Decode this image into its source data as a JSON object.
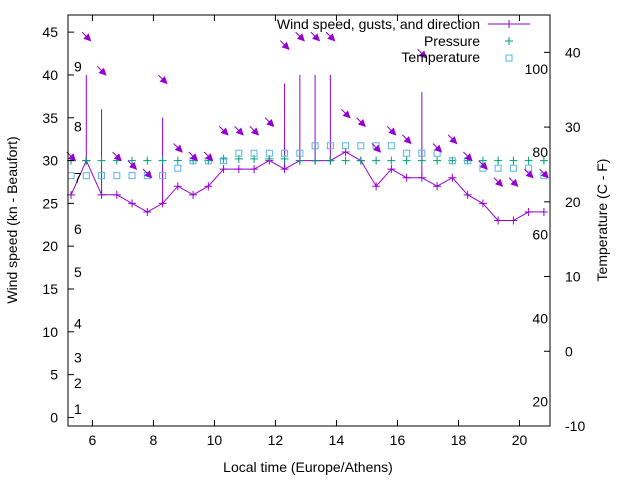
{
  "colors": {
    "wind": "#9400d3",
    "pressure": "#009e73",
    "temperature": "#56b4e9",
    "axis": "#000000"
  },
  "chart_data": {
    "type": "line",
    "title": "",
    "xlabel": "Local time (Europe/Athens)",
    "ylabel": "Wind speed (kn - Beaufort)",
    "y2label": "Temperature (C - F)",
    "xlim": [
      5.2,
      21.0
    ],
    "ylim": [
      -1,
      47
    ],
    "y2lim": [
      -10,
      45
    ],
    "x_ticks": [
      6,
      8,
      10,
      12,
      14,
      16,
      18,
      20
    ],
    "y_ticks": [
      0,
      5,
      10,
      15,
      20,
      25,
      30,
      35,
      40,
      45
    ],
    "y2_ticks": [
      -10,
      0,
      10,
      20,
      30,
      40
    ],
    "beaufort_labels": [
      {
        "label": "1",
        "wind": 1
      },
      {
        "label": "2",
        "wind": 4
      },
      {
        "label": "3",
        "wind": 7
      },
      {
        "label": "4",
        "wind": 11
      },
      {
        "label": "5",
        "wind": 17
      },
      {
        "label": "6",
        "wind": 22
      },
      {
        "label": "7",
        "wind": 28
      },
      {
        "label": "8",
        "wind": 34
      },
      {
        "label": "9",
        "wind": 41
      }
    ],
    "fahrenheit_labels": [
      {
        "label": "20",
        "temp": -6.7
      },
      {
        "label": "40",
        "temp": 4.4
      },
      {
        "label": "60",
        "temp": 15.6
      },
      {
        "label": "80",
        "temp": 26.7
      },
      {
        "label": "100",
        "temp": 37.8
      }
    ],
    "legend": {
      "position": "top-right",
      "entries": [
        "Wind speed, gusts, and direction",
        "Pressure",
        "Temperature"
      ]
    },
    "wind_series": {
      "name": "Wind speed, gusts, and direction",
      "x": [
        5.3,
        5.8,
        6.3,
        6.8,
        7.3,
        7.8,
        8.3,
        8.8,
        9.3,
        9.8,
        10.3,
        10.8,
        11.3,
        11.8,
        12.3,
        12.8,
        13.3,
        13.8,
        14.3,
        14.8,
        15.3,
        15.8,
        16.3,
        16.8,
        17.3,
        17.8,
        18.3,
        18.8,
        19.3,
        19.8,
        20.3,
        20.8
      ],
      "values": [
        26,
        30,
        26,
        26,
        25,
        24,
        25,
        27,
        26,
        27,
        29,
        29,
        29,
        30,
        29,
        30,
        30,
        30,
        31,
        30,
        27,
        29,
        28,
        28,
        27,
        28,
        26,
        25,
        23,
        23,
        24,
        24
      ]
    },
    "gusts": [
      {
        "x": 5.8,
        "value": 40
      },
      {
        "x": 6.3,
        "value": 36
      },
      {
        "x": 8.3,
        "value": 35
      },
      {
        "x": 12.3,
        "value": 39
      },
      {
        "x": 12.8,
        "value": 40
      },
      {
        "x": 13.3,
        "value": 40
      },
      {
        "x": 13.8,
        "value": 40
      },
      {
        "x": 16.8,
        "value": 38
      }
    ],
    "pressure_series": {
      "name": "Pressure",
      "x": [
        5.3,
        5.8,
        6.3,
        6.8,
        7.3,
        7.8,
        8.3,
        8.8,
        9.3,
        9.8,
        10.3,
        10.8,
        11.3,
        11.8,
        12.3,
        12.8,
        13.3,
        13.8,
        14.3,
        14.8,
        15.3,
        15.8,
        16.3,
        16.8,
        17.3,
        17.8,
        18.3,
        18.8,
        19.3,
        19.8,
        20.3,
        20.8
      ],
      "values": [
        30,
        30,
        30,
        30,
        30,
        30,
        30,
        30,
        30,
        30,
        30.2,
        30.2,
        30.2,
        30.2,
        30.2,
        30,
        30,
        30,
        30,
        30,
        30,
        30,
        30,
        30,
        30,
        30,
        30,
        30,
        30,
        30,
        30,
        30
      ]
    },
    "temperature_series": {
      "name": "Temperature",
      "x": [
        5.3,
        5.8,
        6.3,
        6.8,
        7.3,
        7.8,
        8.3,
        8.8,
        9.3,
        9.8,
        10.3,
        10.8,
        11.3,
        11.8,
        12.3,
        12.8,
        13.3,
        13.8,
        14.3,
        14.8,
        15.3,
        15.8,
        16.3,
        16.8,
        17.3,
        17.8,
        18.3,
        18.8,
        19.3,
        19.8,
        20.3,
        20.8
      ],
      "values": [
        23.5,
        23.5,
        23.5,
        23.5,
        23.5,
        23.5,
        23.5,
        24.5,
        25.5,
        25.5,
        25.5,
        26.5,
        26.5,
        26.5,
        26.5,
        26.5,
        27.5,
        27.5,
        27.5,
        27.5,
        27.5,
        27.5,
        26.5,
        26.5,
        26.5,
        25.5,
        25.5,
        24.5,
        24.5,
        24.5,
        24.5,
        23.5
      ]
    },
    "direction_arrows": [
      {
        "x": 5.3,
        "wind": 30.5,
        "direction": "NW"
      },
      {
        "x": 5.8,
        "wind": 44.5,
        "direction": "NW"
      },
      {
        "x": 6.3,
        "wind": 40.5,
        "direction": "NW"
      },
      {
        "x": 6.8,
        "wind": 30.5,
        "direction": "NW"
      },
      {
        "x": 7.3,
        "wind": 29.5,
        "direction": "NW"
      },
      {
        "x": 7.8,
        "wind": 28.5,
        "direction": "NW"
      },
      {
        "x": 8.3,
        "wind": 39.5,
        "direction": "NW"
      },
      {
        "x": 8.8,
        "wind": 31.5,
        "direction": "NW"
      },
      {
        "x": 9.3,
        "wind": 30.5,
        "direction": "NW"
      },
      {
        "x": 9.8,
        "wind": 30.5,
        "direction": "NW"
      },
      {
        "x": 10.3,
        "wind": 33.5,
        "direction": "NW"
      },
      {
        "x": 10.8,
        "wind": 33.5,
        "direction": "NW"
      },
      {
        "x": 11.3,
        "wind": 33.5,
        "direction": "NW"
      },
      {
        "x": 11.8,
        "wind": 34.5,
        "direction": "NW"
      },
      {
        "x": 12.3,
        "wind": 43.5,
        "direction": "NW"
      },
      {
        "x": 12.8,
        "wind": 44.5,
        "direction": "NW"
      },
      {
        "x": 13.3,
        "wind": 44.5,
        "direction": "NW"
      },
      {
        "x": 13.8,
        "wind": 44.5,
        "direction": "NW"
      },
      {
        "x": 14.3,
        "wind": 35.5,
        "direction": "NW"
      },
      {
        "x": 14.8,
        "wind": 34.5,
        "direction": "NW"
      },
      {
        "x": 15.3,
        "wind": 31.5,
        "direction": "NW"
      },
      {
        "x": 15.8,
        "wind": 33.5,
        "direction": "NW"
      },
      {
        "x": 16.3,
        "wind": 32.5,
        "direction": "NW"
      },
      {
        "x": 16.8,
        "wind": 42.5,
        "direction": "NW"
      },
      {
        "x": 17.3,
        "wind": 31.5,
        "direction": "NW"
      },
      {
        "x": 17.8,
        "wind": 32.5,
        "direction": "NW"
      },
      {
        "x": 18.3,
        "wind": 30.5,
        "direction": "NW"
      },
      {
        "x": 18.8,
        "wind": 29.5,
        "direction": "NW"
      },
      {
        "x": 19.3,
        "wind": 27.5,
        "direction": "NW"
      },
      {
        "x": 19.8,
        "wind": 27.5,
        "direction": "NW"
      },
      {
        "x": 20.3,
        "wind": 28.5,
        "direction": "NW"
      },
      {
        "x": 20.8,
        "wind": 28.5,
        "direction": "NW"
      }
    ]
  }
}
